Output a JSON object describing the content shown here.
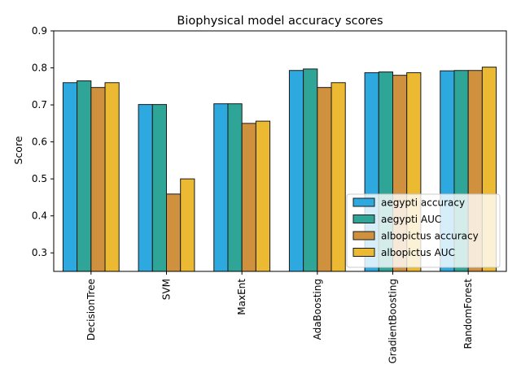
{
  "chart_data": {
    "type": "bar",
    "title": "Biophysical model accuracy scores",
    "xlabel": "",
    "ylabel": "Score",
    "ylim": [
      0.25,
      0.9
    ],
    "yticks": [
      "0.3",
      "0.4",
      "0.5",
      "0.6",
      "0.7",
      "0.8",
      "0.9"
    ],
    "grid": false,
    "legend_position": "lower-right",
    "categories": [
      "DecisionTree",
      "SVM",
      "MaxEnt",
      "AdaBoosting",
      "GradientBoosting",
      "RandomForest"
    ],
    "series": [
      {
        "name": "aegypti accuracy",
        "color": "#2ea9df",
        "values": [
          0.76,
          0.701,
          0.703,
          0.793,
          0.787,
          0.792
        ]
      },
      {
        "name": "aegypti AUC",
        "color": "#2ea596",
        "values": [
          0.765,
          0.701,
          0.703,
          0.797,
          0.789,
          0.793
        ]
      },
      {
        "name": "albopictus accuracy",
        "color": "#d0913f",
        "values": [
          0.747,
          0.459,
          0.65,
          0.747,
          0.78,
          0.793
        ]
      },
      {
        "name": "albopictus AUC",
        "color": "#ecb932",
        "values": [
          0.76,
          0.5,
          0.656,
          0.76,
          0.787,
          0.802
        ]
      }
    ]
  }
}
